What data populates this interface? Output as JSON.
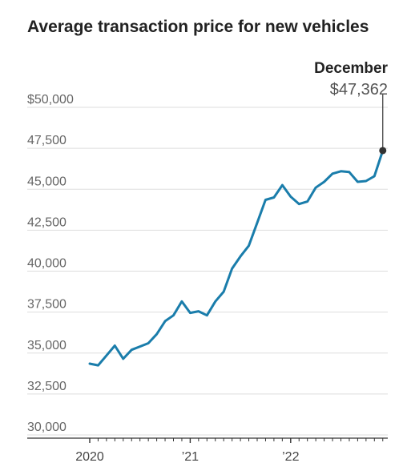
{
  "chart_data": {
    "type": "line",
    "title": "Average transaction price for new vehicles",
    "xlabel": "",
    "ylabel": "",
    "ylim": [
      30000,
      50000
    ],
    "yticks": [
      {
        "value": 50000,
        "label": "$50,000"
      },
      {
        "value": 47500,
        "label": "47,500"
      },
      {
        "value": 45000,
        "label": "45,000"
      },
      {
        "value": 42500,
        "label": "42,500"
      },
      {
        "value": 40000,
        "label": "40,000"
      },
      {
        "value": 37500,
        "label": "37,500"
      },
      {
        "value": 35000,
        "label": "35,000"
      },
      {
        "value": 32500,
        "label": "32,500"
      },
      {
        "value": 30000,
        "label": "30,000"
      }
    ],
    "xticks": [
      {
        "index": 0,
        "label": "2020"
      },
      {
        "index": 12,
        "label": "’21"
      },
      {
        "index": 24,
        "label": "’22"
      }
    ],
    "x": [
      "2020-01",
      "2020-02",
      "2020-03",
      "2020-04",
      "2020-05",
      "2020-06",
      "2020-07",
      "2020-08",
      "2020-09",
      "2020-10",
      "2020-11",
      "2020-12",
      "2021-01",
      "2021-02",
      "2021-03",
      "2021-04",
      "2021-05",
      "2021-06",
      "2021-07",
      "2021-08",
      "2021-09",
      "2021-10",
      "2021-11",
      "2021-12",
      "2022-01",
      "2022-02",
      "2022-03",
      "2022-04",
      "2022-05",
      "2022-06",
      "2022-07",
      "2022-08",
      "2022-09",
      "2022-10",
      "2022-11",
      "2022-12"
    ],
    "series": [
      {
        "values": [
          34350,
          34250,
          34850,
          35450,
          34650,
          35200,
          35400,
          35600,
          36150,
          36950,
          37300,
          38150,
          37450,
          37550,
          37300,
          38150,
          38750,
          40150,
          40900,
          41550,
          42950,
          44350,
          44500,
          45250,
          44550,
          44100,
          44250,
          45100,
          45450,
          45950,
          46100,
          46050,
          45450,
          45500,
          45800,
          47362
        ]
      }
    ],
    "annotation": {
      "index": 35,
      "label": "December",
      "value_label": "$47,362"
    },
    "grid": true,
    "colors": {
      "line": "#1a7dab",
      "grid": "#dddddd",
      "marker": "#333333",
      "axis": "#333333"
    }
  }
}
